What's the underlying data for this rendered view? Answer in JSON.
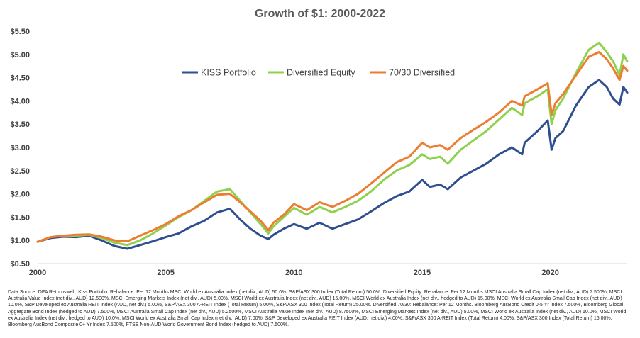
{
  "chart_data": {
    "type": "line",
    "title": "Growth of $1: 2000-2022",
    "xlabel": "",
    "ylabel": "",
    "xlim": [
      2000,
      2023
    ],
    "ylim": [
      0.5,
      5.5
    ],
    "x_ticks": [
      "2000",
      "2005",
      "2010",
      "2015",
      "2020"
    ],
    "y_ticks": [
      "$0.50",
      "$1.00",
      "$1.50",
      "$2.00",
      "$2.50",
      "$3.00",
      "$3.50",
      "$4.00",
      "$4.50",
      "$5.00",
      "$5.50"
    ],
    "legend_position": "top-center",
    "grid": false,
    "colors": {
      "kiss": "#2f4f8f",
      "diversified": "#8fd14f",
      "seventy": "#ed7d31"
    },
    "x": [
      2000.0,
      2000.5,
      2001.0,
      2001.5,
      2002.0,
      2002.5,
      2003.0,
      2003.5,
      2004.0,
      2004.5,
      2005.0,
      2005.5,
      2006.0,
      2006.5,
      2007.0,
      2007.5,
      2007.9,
      2008.3,
      2008.7,
      2009.0,
      2009.2,
      2009.6,
      2010.0,
      2010.5,
      2011.0,
      2011.5,
      2012.0,
      2012.5,
      2013.0,
      2013.5,
      2014.0,
      2014.5,
      2015.0,
      2015.3,
      2015.7,
      2016.0,
      2016.5,
      2017.0,
      2017.5,
      2018.0,
      2018.5,
      2018.9,
      2019.0,
      2019.5,
      2019.9,
      2020.05,
      2020.2,
      2020.5,
      2021.0,
      2021.5,
      2021.9,
      2022.2,
      2022.45,
      2022.7,
      2022.85,
      2023.0
    ],
    "series": [
      {
        "name": "KISS Portfolio",
        "values": [
          0.97,
          1.05,
          1.08,
          1.07,
          1.1,
          1.0,
          0.88,
          0.82,
          0.9,
          0.98,
          1.07,
          1.15,
          1.3,
          1.42,
          1.6,
          1.68,
          1.45,
          1.25,
          1.1,
          1.03,
          1.12,
          1.25,
          1.35,
          1.25,
          1.38,
          1.25,
          1.35,
          1.45,
          1.62,
          1.8,
          1.95,
          2.05,
          2.3,
          2.15,
          2.2,
          2.1,
          2.35,
          2.5,
          2.65,
          2.85,
          3.0,
          2.85,
          3.1,
          3.35,
          3.58,
          2.95,
          3.2,
          3.35,
          3.9,
          4.3,
          4.45,
          4.3,
          4.05,
          3.92,
          4.3,
          4.18
        ]
      },
      {
        "name": "Diversified Equity",
        "values": [
          0.97,
          1.07,
          1.1,
          1.1,
          1.12,
          1.05,
          0.95,
          0.9,
          1.0,
          1.15,
          1.32,
          1.5,
          1.65,
          1.85,
          2.05,
          2.1,
          1.85,
          1.6,
          1.35,
          1.15,
          1.3,
          1.5,
          1.7,
          1.55,
          1.72,
          1.6,
          1.72,
          1.85,
          2.05,
          2.3,
          2.5,
          2.62,
          2.85,
          2.75,
          2.8,
          2.65,
          2.95,
          3.15,
          3.35,
          3.6,
          3.85,
          3.7,
          3.95,
          4.1,
          4.25,
          3.5,
          3.8,
          4.05,
          4.6,
          5.1,
          5.25,
          5.05,
          4.85,
          4.55,
          5.0,
          4.85
        ]
      },
      {
        "name": "70/30 Diversified",
        "values": [
          0.97,
          1.07,
          1.1,
          1.12,
          1.13,
          1.08,
          1.0,
          0.98,
          1.1,
          1.22,
          1.35,
          1.52,
          1.65,
          1.82,
          1.98,
          2.0,
          1.82,
          1.62,
          1.42,
          1.22,
          1.38,
          1.55,
          1.78,
          1.65,
          1.82,
          1.72,
          1.85,
          2.0,
          2.22,
          2.45,
          2.68,
          2.8,
          3.1,
          3.0,
          3.05,
          2.95,
          3.2,
          3.38,
          3.55,
          3.75,
          4.0,
          3.9,
          4.1,
          4.25,
          4.38,
          3.7,
          3.95,
          4.15,
          4.55,
          4.95,
          5.05,
          4.9,
          4.7,
          4.45,
          4.75,
          4.65
        ]
      }
    ]
  },
  "footnote": "Data Source: DFA Returnsweb. Kiss Portfolio: Rebalance: Per 12 Months MSCI World ex Australia Index (net div., AUD) 50.0%, S&P/ASX 300 Index (Total Return) 50.0%. Diversified Equity: Rebalance: Per 12 Months.MSCI Australia Small Cap Index (net div., AUD) 7.500%, MSCI Australia Value Index (net div., AUD) 12.500%, MSCI Emerging Markets Index (net div., AUD) 5.00%, MSCI World ex Australia Index (net div., AUD) 15.00%, MSCI World ex Australia Index (net div., hedged to AUD) 15.00%, MSCI World ex Australia Small Cap Index (net div., AUD) 10.0%, S&P Developed ex Australia REIT Index (AUD, net div.) 5.00%, S&P/ASX 300 A-REIT Index (Total Return) 5.00%, S&P/ASX 300 Index (Total Return) 25.00%. Diversified 70/30: Rebalance: Per 12 Months. Bloomberg AusBond Credit 0-5 Yr Index 7.500%, Bloomberg Global Aggregate Bond Index (hedged to AUD) 7.500%, MSCI Australia Small Cap Index (net div., AUD) 5.2500%, MSCI Australia Value Index (net div., AUD) 8.7500%, MSCI Emerging Markets Index (net div., AUD) 5.00%, MSCI World ex Australia Index (net div., AUD) 10.0%, MSCI World ex Australia Index (net div., hedged to AUD) 10.0%, MSCI World ex Australia Small Cap Index (net div., AUD) 7.00%, S&P Developed ex Australia REIT Index (AUD, net div.) 4.00%, S&P/ASX 300 A-REIT Index (Total Return) 4.00%, S&P/ASX 300 Index (Total Return) 16.00%, Bloomberg AusBond Composite 0+ Yr Index 7.500%, FTSE Non-AUD World Government Bond Index (hedged to AUD) 7.500%."
}
